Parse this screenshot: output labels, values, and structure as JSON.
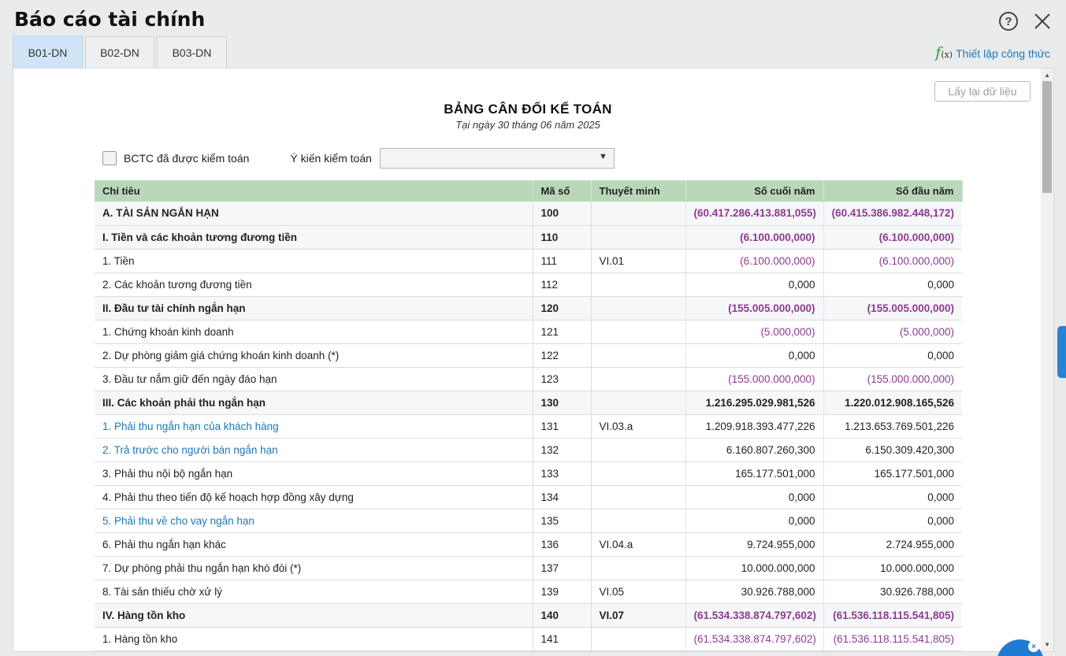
{
  "window": {
    "title": "Báo cáo tài chính"
  },
  "tabs": [
    {
      "label": "B01-DN",
      "active": true
    },
    {
      "label": "B02-DN",
      "active": false
    },
    {
      "label": "B03-DN",
      "active": false
    }
  ],
  "formula_link": {
    "label": "Thiết lập công thức",
    "icon": "fx-icon"
  },
  "refresh_button": {
    "label": "Lấy lại dữ liệu"
  },
  "report": {
    "title": "BẢNG CÂN ĐỐI KẾ TOÁN",
    "subtitle": "Tại ngày 30 tháng 06 năm 2025"
  },
  "audit": {
    "checkbox_label": "BCTC đã được kiểm toán",
    "checked": false,
    "opinion_label": "Ý kiến kiểm toán",
    "opinion_value": ""
  },
  "table": {
    "headers": {
      "name": "Chỉ tiêu",
      "code": "Mã số",
      "note": "Thuyết minh",
      "end": "Số cuối năm",
      "begin": "Số đầu năm"
    },
    "rows": [
      {
        "name": "A. TÀI SẢN NGẮN HẠN",
        "code": "100",
        "note": "",
        "end": "(60.417.286.413.881,055)",
        "begin": "(60.415.386.982.448,172)",
        "bold": true
      },
      {
        "name": "I. Tiền và các khoản tương đương tiền",
        "code": "110",
        "note": "",
        "end": "(6.100.000,000)",
        "begin": "(6.100.000,000)",
        "bold": true
      },
      {
        "name": "1. Tiền",
        "code": "111",
        "note": "VI.01",
        "end": "(6.100.000,000)",
        "begin": "(6.100.000,000)"
      },
      {
        "name": "2. Các khoản tương đương tiền",
        "code": "112",
        "note": "",
        "end": "0,000",
        "begin": "0,000"
      },
      {
        "name": "II. Đầu tư tài chính ngắn hạn",
        "code": "120",
        "note": "",
        "end": "(155.005.000,000)",
        "begin": "(155.005.000,000)",
        "bold": true
      },
      {
        "name": "1. Chứng khoán kinh doanh",
        "code": "121",
        "note": "",
        "end": "(5.000,000)",
        "begin": "(5.000,000)"
      },
      {
        "name": "2. Dự phòng giảm giá chứng khoán kinh doanh (*)",
        "code": "122",
        "note": "",
        "end": "0,000",
        "begin": "0,000"
      },
      {
        "name": "3. Đầu tư nắm giữ đến ngày đáo hạn",
        "code": "123",
        "note": "",
        "end": "(155.000.000,000)",
        "begin": "(155.000.000,000)"
      },
      {
        "name": "III. Các khoản phải thu ngắn hạn",
        "code": "130",
        "note": "",
        "end": "1.216.295.029.981,526",
        "begin": "1.220.012.908.165,526",
        "bold": true
      },
      {
        "name": "1. Phải thu ngắn hạn của khách hàng",
        "code": "131",
        "note": "VI.03.a",
        "end": "1.209.918.393.477,226",
        "begin": "1.213.653.769.501,226",
        "link": true
      },
      {
        "name": "2. Trả trước cho người bán ngắn hạn",
        "code": "132",
        "note": "",
        "end": "6.160.807.260,300",
        "begin": "6.150.309.420,300",
        "link": true
      },
      {
        "name": "3. Phải thu nội bộ ngắn hạn",
        "code": "133",
        "note": "",
        "end": "165.177.501,000",
        "begin": "165.177.501,000"
      },
      {
        "name": "4. Phải thu theo tiến độ kế hoạch hợp đồng xây dựng",
        "code": "134",
        "note": "",
        "end": "0,000",
        "begin": "0,000"
      },
      {
        "name": "5. Phải thu về cho vay ngắn hạn",
        "code": "135",
        "note": "",
        "end": "0,000",
        "begin": "0,000",
        "link": true
      },
      {
        "name": "6. Phải thu ngắn hạn khác",
        "code": "136",
        "note": "VI.04.a",
        "end": "9.724.955,000",
        "begin": "2.724.955,000"
      },
      {
        "name": "7. Dự phòng phải thu ngắn hạn khó đòi (*)",
        "code": "137",
        "note": "",
        "end": "10.000.000,000",
        "begin": "10.000.000,000"
      },
      {
        "name": "8. Tài sản thiếu chờ xử lý",
        "code": "139",
        "note": "VI.05",
        "end": "30.926.788,000",
        "begin": "30.926.788,000"
      },
      {
        "name": "IV. Hàng tồn kho",
        "code": "140",
        "note": "VI.07",
        "end": "(61.534.338.874.797,602)",
        "begin": "(61.536.118.115.541,805)",
        "bold": true
      },
      {
        "name": "1. Hàng tồn kho",
        "code": "141",
        "note": "",
        "end": "(61.534.338.874.797,602)",
        "begin": "(61.536.118.115.541,805)"
      }
    ]
  },
  "colors": {
    "header_bg": "#b9d8b9",
    "negative": "#8e3a92",
    "link": "#1f78b4",
    "active_tab": "#cfe5f7"
  }
}
